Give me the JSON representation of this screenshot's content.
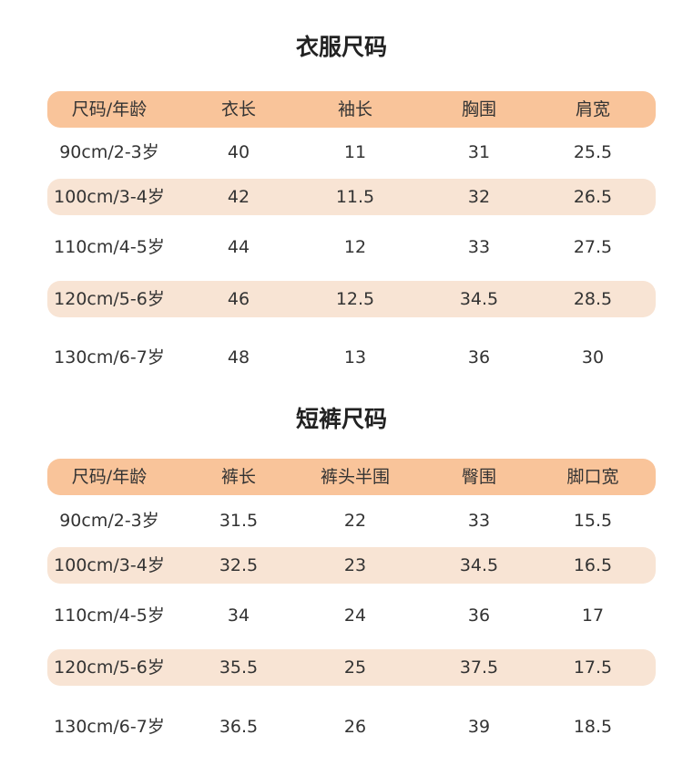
{
  "tables": [
    {
      "title": "衣服尺码",
      "header": [
        "尺码/年龄",
        "衣长",
        "袖长",
        "胸围",
        "肩宽"
      ],
      "rows": [
        [
          "90cm/2-3岁",
          "40",
          "11",
          "31",
          "25.5"
        ],
        [
          "100cm/3-4岁",
          "42",
          "11.5",
          "32",
          "26.5"
        ],
        [
          "110cm/4-5岁",
          "44",
          "12",
          "33",
          "27.5"
        ],
        [
          "120cm/5-6岁",
          "46",
          "12.5",
          "34.5",
          "28.5"
        ],
        [
          "130cm/6-7岁",
          "48",
          "13",
          "36",
          "30"
        ]
      ]
    },
    {
      "title": "短裤尺码",
      "header": [
        "尺码/年龄",
        "裤长",
        "裤头半围",
        "臀围",
        "脚口宽"
      ],
      "rows": [
        [
          "90cm/2-3岁",
          "31.5",
          "22",
          "33",
          "15.5"
        ],
        [
          "100cm/3-4岁",
          "32.5",
          "23",
          "34.5",
          "16.5"
        ],
        [
          "110cm/4-5岁",
          "34",
          "24",
          "36",
          "17"
        ],
        [
          "120cm/5-6岁",
          "35.5",
          "25",
          "37.5",
          "17.5"
        ],
        [
          "130cm/6-7岁",
          "36.5",
          "26",
          "39",
          "18.5"
        ]
      ]
    }
  ]
}
